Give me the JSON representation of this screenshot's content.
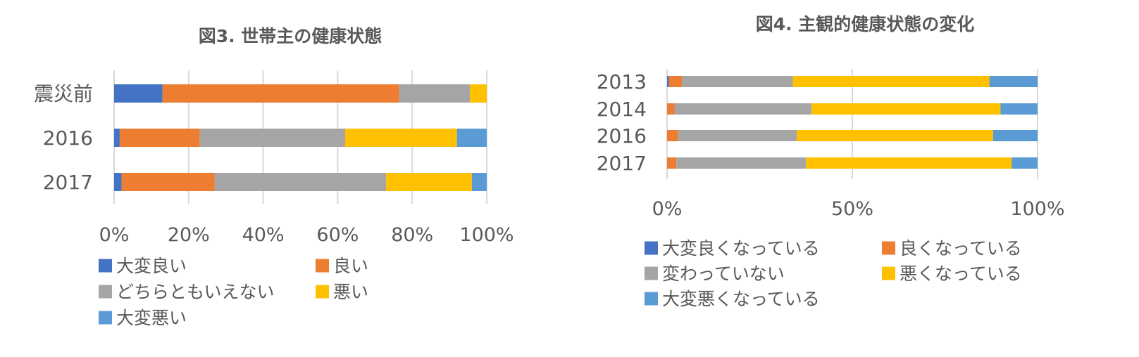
{
  "colors": {
    "very_good": "#4472C4",
    "good": "#ED7D31",
    "neutral": "#A5A5A5",
    "bad": "#FFC000",
    "very_bad": "#5B9BD5",
    "grid": "#D9D9D9",
    "text": "#595959"
  },
  "chart_data": [
    {
      "type": "bar",
      "orientation": "horizontal",
      "stacked": "percent",
      "title": "図3. 世帯主の健康状態",
      "categories": [
        "震災前",
        "2016",
        "2017"
      ],
      "series": [
        {
          "name": "大変良い",
          "color": "#4472C4",
          "values": [
            13,
            1.5,
            2
          ]
        },
        {
          "name": "良い",
          "color": "#ED7D31",
          "values": [
            63.5,
            21.5,
            25
          ]
        },
        {
          "name": "どちらともいえない",
          "color": "#A5A5A5",
          "values": [
            19,
            39,
            46
          ]
        },
        {
          "name": "悪い",
          "color": "#FFC000",
          "values": [
            4.5,
            30,
            23
          ]
        },
        {
          "name": "大変悪い",
          "color": "#5B9BD5",
          "values": [
            0,
            8,
            4
          ]
        }
      ],
      "xlim": [
        0,
        100
      ],
      "xticks": [
        "0%",
        "20%",
        "40%",
        "60%",
        "80%",
        "100%"
      ],
      "grid": true,
      "legend_position": "bottom"
    },
    {
      "type": "bar",
      "orientation": "horizontal",
      "stacked": "percent",
      "title": "図4. 主観的健康状態の変化",
      "categories": [
        "2013",
        "2014",
        "2016",
        "2017"
      ],
      "series": [
        {
          "name": "大変良くなっている",
          "color": "#4472C4",
          "values": [
            0.5,
            0,
            0,
            0
          ]
        },
        {
          "name": "良くなっている",
          "color": "#ED7D31",
          "values": [
            3.5,
            2,
            3,
            2.5
          ]
        },
        {
          "name": "変わっていない",
          "color": "#A5A5A5",
          "values": [
            30,
            37,
            32,
            35
          ]
        },
        {
          "name": "悪くなっている",
          "color": "#FFC000",
          "values": [
            53,
            51,
            53,
            55.5
          ]
        },
        {
          "name": "大変悪くなっている",
          "color": "#5B9BD5",
          "values": [
            13,
            10,
            12,
            7
          ]
        }
      ],
      "xlim": [
        0,
        100
      ],
      "xticks": [
        "0%",
        "50%",
        "100%"
      ],
      "grid": true,
      "legend_position": "bottom"
    }
  ]
}
